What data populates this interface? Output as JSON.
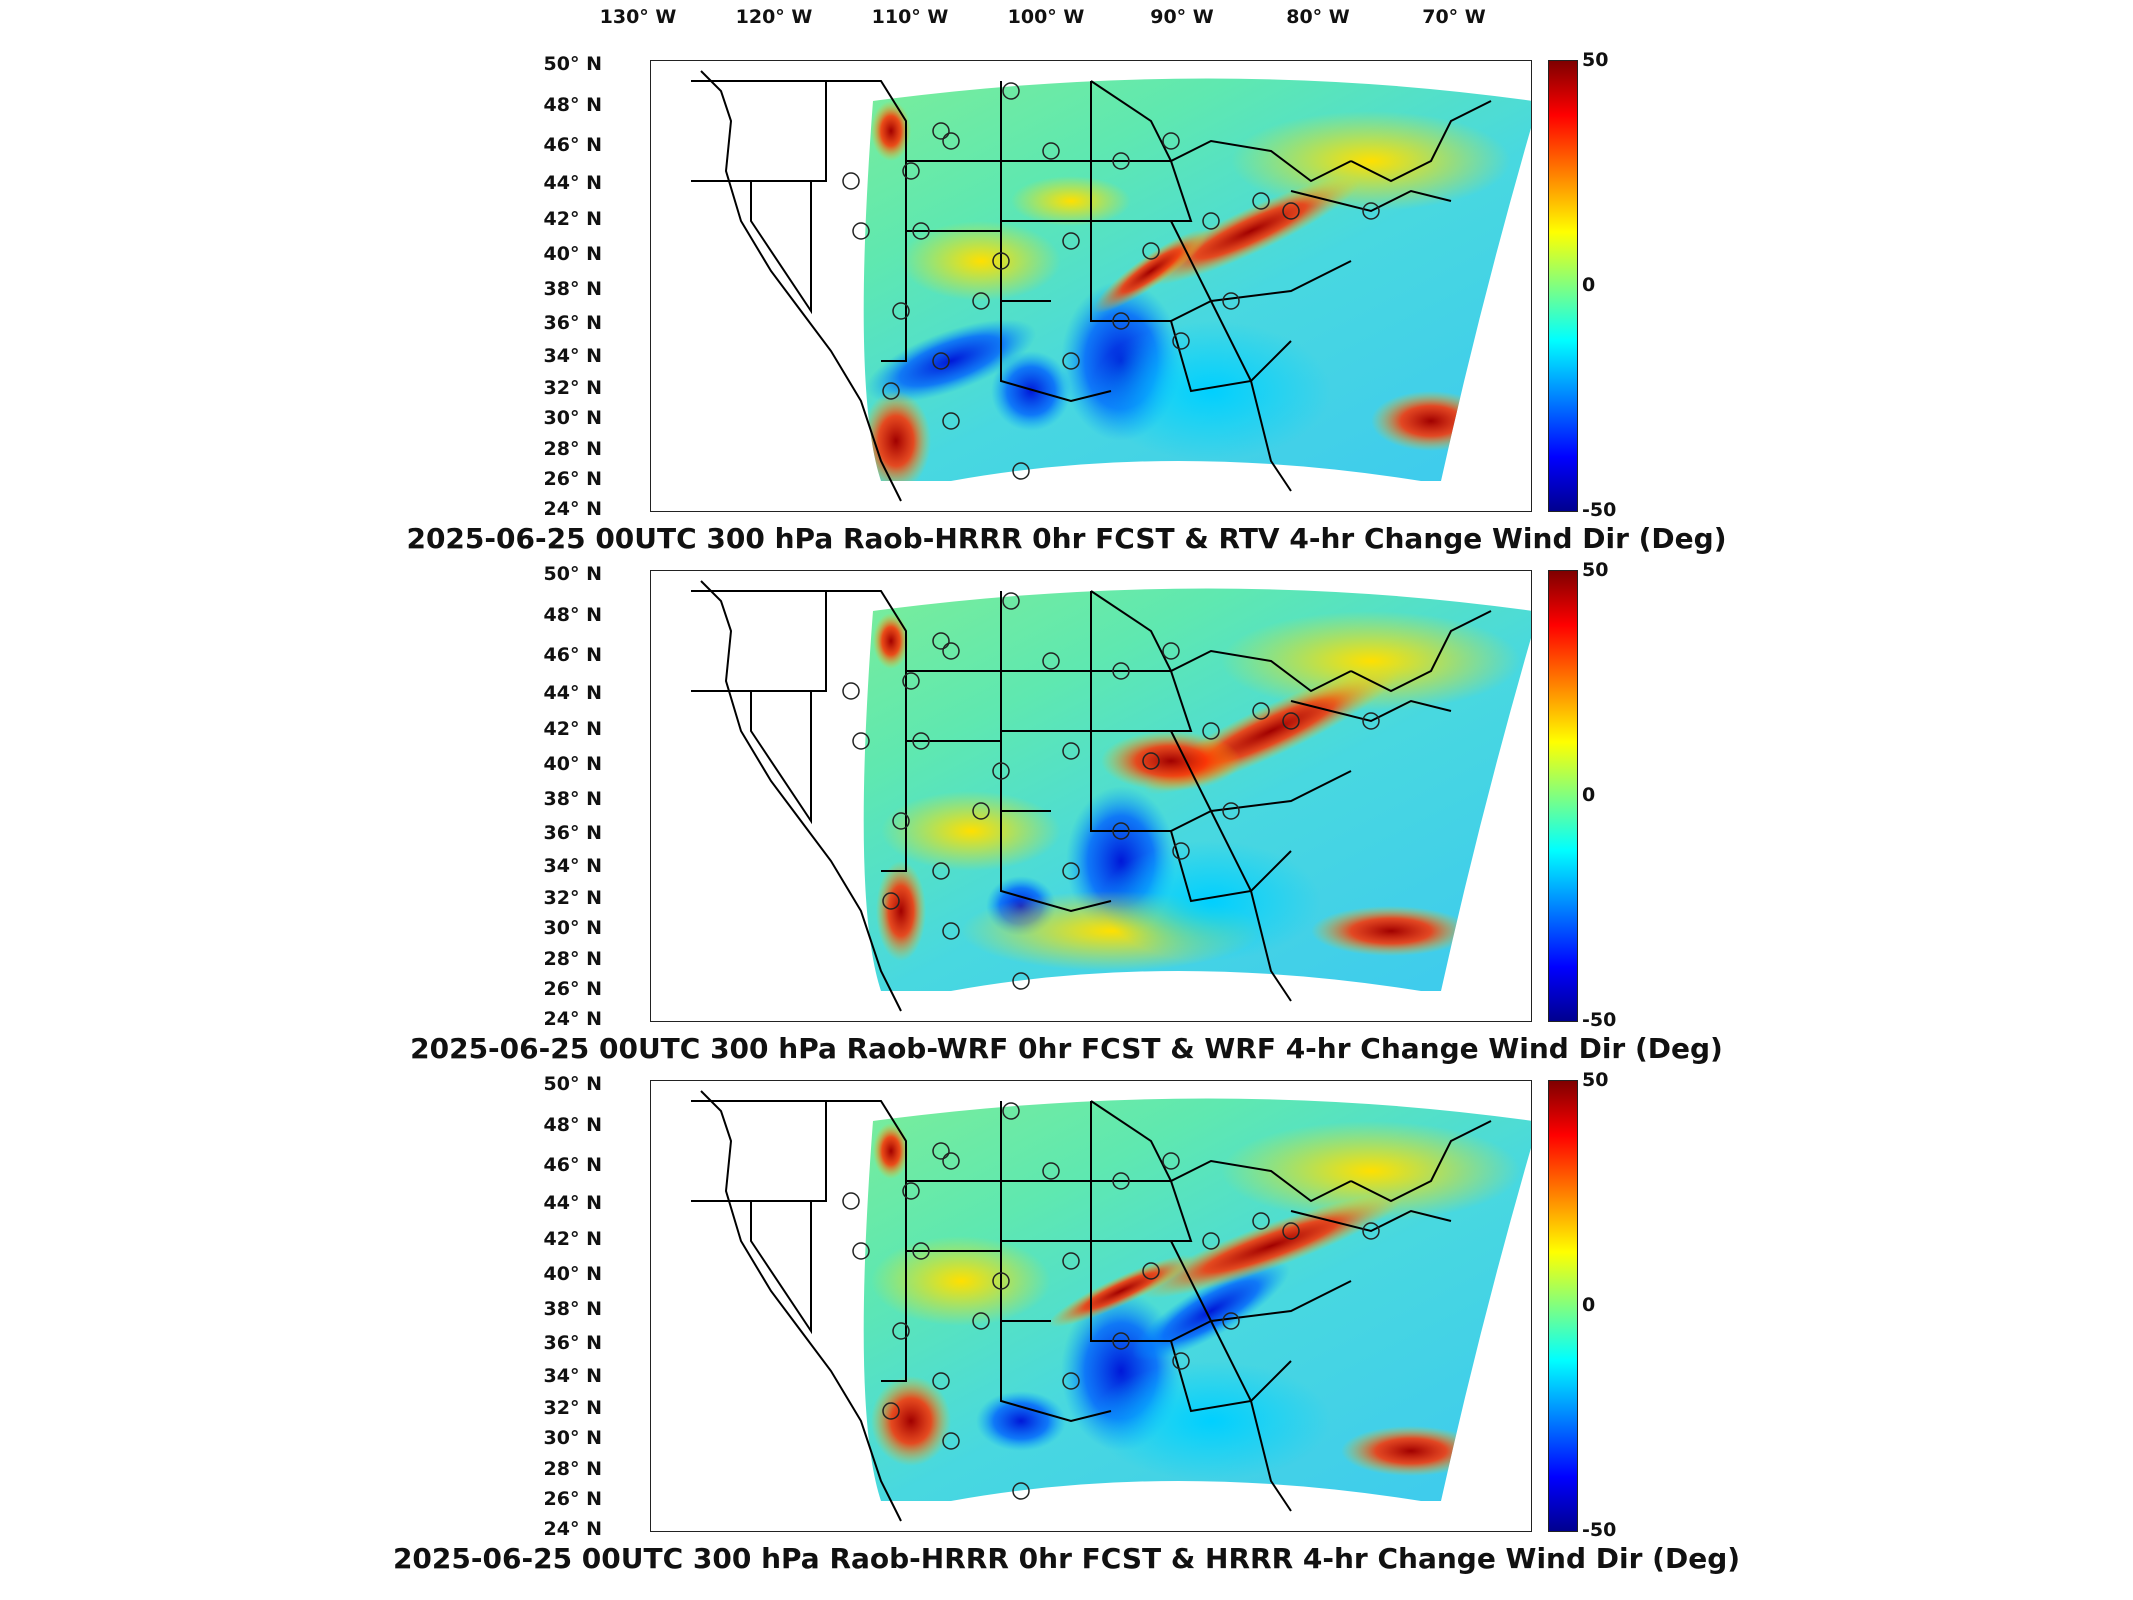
{
  "lon_labels": [
    "130° W",
    "120° W",
    "110° W",
    "100° W",
    "90° W",
    "80° W",
    "70° W"
  ],
  "lat_labels": [
    "50° N",
    "48° N",
    "46° N",
    "44° N",
    "42° N",
    "40° N",
    "38° N",
    "36° N",
    "34° N",
    "32° N",
    "30° N",
    "28° N",
    "26° N",
    "24° N"
  ],
  "colorbar": {
    "max": "50",
    "mid": "0",
    "min": "-50",
    "colormap": "jet"
  },
  "panels": [
    {
      "title": "2025-06-25 00UTC 300 hPa Raob-HRRR 0hr FCST & RTV 4-hr Change Wind Dir (Deg)"
    },
    {
      "title": "2025-06-25 00UTC 300 hPa Raob-WRF 0hr FCST & WRF 4-hr Change Wind Dir (Deg)"
    },
    {
      "title": "2025-06-25 00UTC 300 hPa Raob-HRRR 0hr FCST & HRRR 4-hr Change Wind Dir (Deg)"
    }
  ]
}
